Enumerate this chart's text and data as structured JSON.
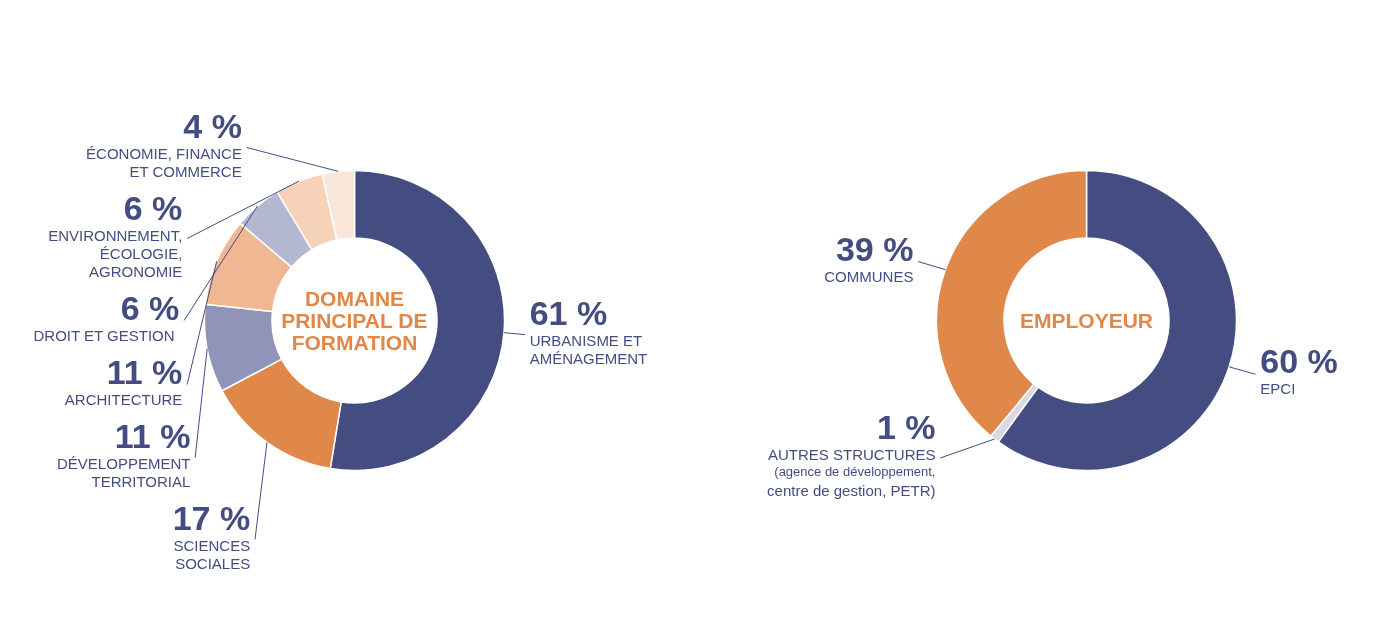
{
  "chart_data": [
    {
      "type": "donut",
      "title": "DOMAINE\nPRINCIPAL DE\nFORMATION",
      "categories": [
        "URBANISME ET\nAMÉNAGEMENT",
        "SCIENCES\nSOCIALES",
        "DÉVELOPPEMENT\nTERRITORIAL",
        "ARCHITECTURE",
        "DROIT ET  GESTION",
        "ENVIRONNEMENT,\nÉCOLOGIE,\nAGRONOMIE",
        "ÉCONOMIE, FINANCE\nET COMMERCE"
      ],
      "values": [
        61,
        17,
        11,
        11,
        6,
        6,
        4
      ],
      "colors": [
        "#444d82",
        "#e0874a",
        "#9094b8",
        "#efb893",
        "#b4b7d0",
        "#f5d2b8",
        "#fae6d8"
      ],
      "value_labels": [
        "61 %",
        "17 %",
        "11 %",
        "11 %",
        "6 %",
        "6 %",
        "4 %"
      ]
    },
    {
      "type": "donut",
      "title": "EMPLOYEUR",
      "categories": [
        "EPCI",
        "AUTRES STRUCTURES\n(agence de développement,\ncentre de gestion, PETR)",
        "COMMUNES"
      ],
      "values": [
        60,
        1,
        39
      ],
      "colors": [
        "#444d82",
        "#d8d8e6",
        "#e0874a"
      ],
      "value_labels": [
        "60 %",
        "1 %",
        "39 %"
      ]
    }
  ]
}
